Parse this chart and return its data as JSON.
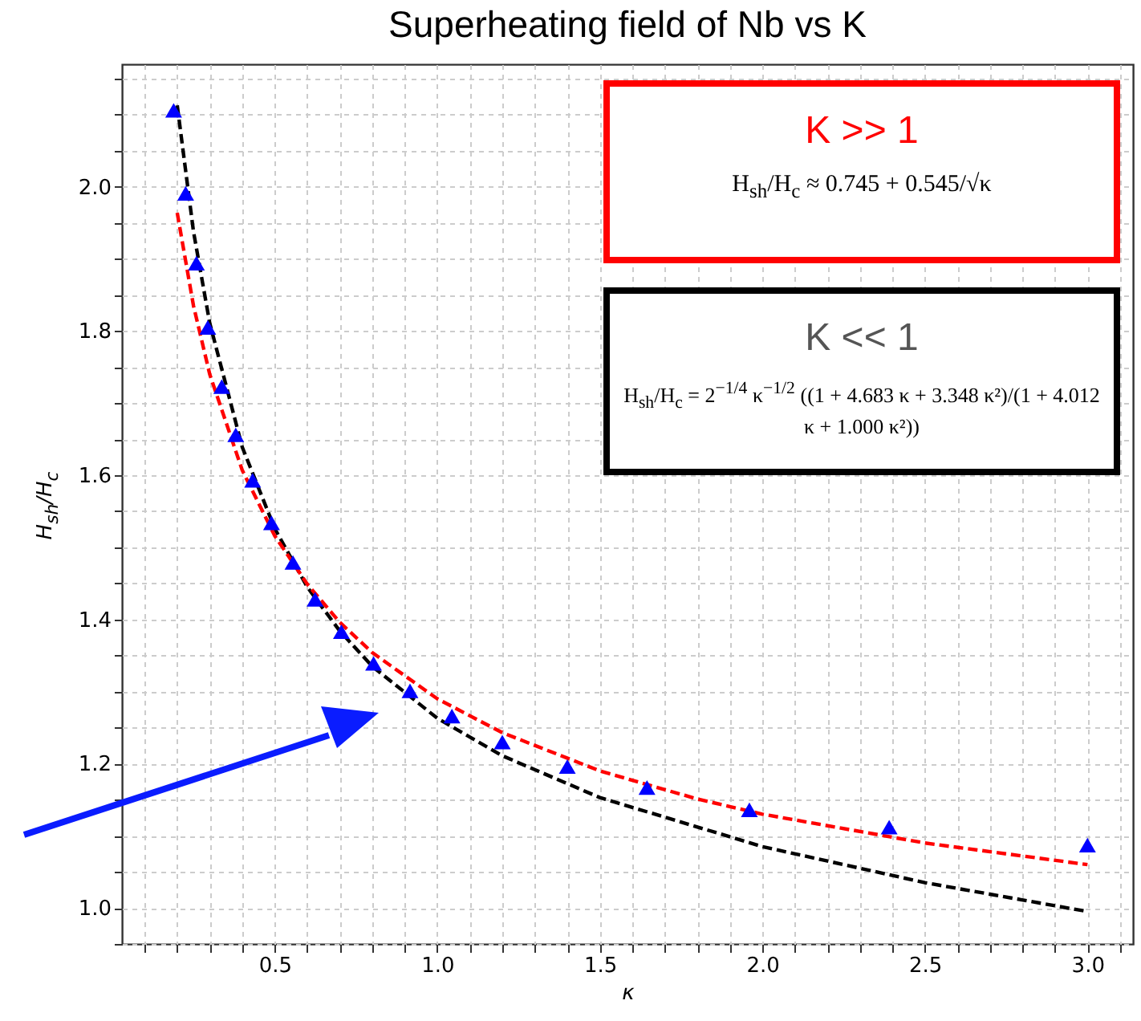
{
  "chart_data": {
    "type": "scatter",
    "title": "Superheating field of Nb vs K",
    "xlabel": "κ",
    "ylabel": "H$_{sh}$/H$_{c}$",
    "xlim": [
      0.03,
      3.14
    ],
    "ylim": [
      0.95,
      2.17
    ],
    "xticks": [
      {
        "value": 0.1,
        "label": null
      },
      {
        "value": 0.2,
        "label": null
      },
      {
        "value": 0.3,
        "label": null
      },
      {
        "value": 0.4,
        "label": null
      },
      {
        "value": 0.5,
        "label": "0.5"
      },
      {
        "value": 0.6,
        "label": null
      },
      {
        "value": 0.7,
        "label": null
      },
      {
        "value": 0.8,
        "label": null
      },
      {
        "value": 0.9,
        "label": null
      },
      {
        "value": 1.0,
        "label": "1.0"
      },
      {
        "value": 1.1,
        "label": null
      },
      {
        "value": 1.2,
        "label": null
      },
      {
        "value": 1.3,
        "label": null
      },
      {
        "value": 1.4,
        "label": null
      },
      {
        "value": 1.5,
        "label": "1.5"
      },
      {
        "value": 1.6,
        "label": null
      },
      {
        "value": 1.7,
        "label": null
      },
      {
        "value": 1.8,
        "label": null
      },
      {
        "value": 1.9,
        "label": null
      },
      {
        "value": 2.0,
        "label": "2.0"
      },
      {
        "value": 2.1,
        "label": null
      },
      {
        "value": 2.2,
        "label": null
      },
      {
        "value": 2.3,
        "label": null
      },
      {
        "value": 2.4,
        "label": null
      },
      {
        "value": 2.5,
        "label": "2.5"
      },
      {
        "value": 2.6,
        "label": null
      },
      {
        "value": 2.7,
        "label": null
      },
      {
        "value": 2.8,
        "label": null
      },
      {
        "value": 2.9,
        "label": null
      },
      {
        "value": 3.0,
        "label": "3.0"
      },
      {
        "value": 3.1,
        "label": null
      }
    ],
    "yticks": [
      {
        "value": 0.95,
        "label": null
      },
      {
        "value": 1.0,
        "label": "1.0"
      },
      {
        "value": 1.05,
        "label": null
      },
      {
        "value": 1.1,
        "label": null
      },
      {
        "value": 1.15,
        "label": null
      },
      {
        "value": 1.2,
        "label": "1.2"
      },
      {
        "value": 1.25,
        "label": null
      },
      {
        "value": 1.3,
        "label": null
      },
      {
        "value": 1.35,
        "label": null
      },
      {
        "value": 1.4,
        "label": "1.4"
      },
      {
        "value": 1.45,
        "label": null
      },
      {
        "value": 1.5,
        "label": null
      },
      {
        "value": 1.55,
        "label": null
      },
      {
        "value": 1.6,
        "label": "1.6"
      },
      {
        "value": 1.65,
        "label": null
      },
      {
        "value": 1.7,
        "label": null
      },
      {
        "value": 1.75,
        "label": null
      },
      {
        "value": 1.8,
        "label": "1.8"
      },
      {
        "value": 1.85,
        "label": null
      },
      {
        "value": 1.9,
        "label": null
      },
      {
        "value": 1.95,
        "label": null
      },
      {
        "value": 2.0,
        "label": "2.0"
      },
      {
        "value": 2.05,
        "label": null
      },
      {
        "value": 2.1,
        "label": null
      },
      {
        "value": 2.15,
        "label": null
      }
    ],
    "grid": true,
    "line_style": "dashed",
    "series": [
      {
        "type": "line",
        "color": "#000000",
        "x": [
          0.2,
          0.25,
          0.3,
          0.4,
          0.5,
          0.6,
          0.7,
          0.8,
          1.0,
          1.2,
          1.5,
          2.0,
          2.5,
          3.0
        ],
        "values": [
          2.113,
          1.938,
          1.811,
          1.639,
          1.526,
          1.445,
          1.384,
          1.335,
          1.263,
          1.211,
          1.153,
          1.085,
          1.035,
          0.995
        ]
      },
      {
        "type": "line",
        "color": "#ff0000",
        "x": [
          0.2,
          0.25,
          0.3,
          0.4,
          0.5,
          0.6,
          0.7,
          0.8,
          1.0,
          1.2,
          1.5,
          1.8,
          2.0,
          2.5,
          3.0
        ],
        "values": [
          1.964,
          1.835,
          1.74,
          1.607,
          1.516,
          1.449,
          1.396,
          1.354,
          1.29,
          1.243,
          1.19,
          1.151,
          1.13,
          1.09,
          1.06
        ]
      },
      {
        "type": "scatter",
        "marker": "triangle",
        "color": "#0000ff",
        "x": [
          0.189,
          0.226,
          0.259,
          0.294,
          0.337,
          0.38,
          0.432,
          0.49,
          0.556,
          0.624,
          0.705,
          0.804,
          0.916,
          1.045,
          1.2,
          1.4,
          1.645,
          1.96,
          2.39,
          3.0
        ],
        "values": [
          2.106,
          1.991,
          1.894,
          1.805,
          1.723,
          1.656,
          1.593,
          1.534,
          1.479,
          1.428,
          1.383,
          1.339,
          1.301,
          1.266,
          1.23,
          1.196,
          1.167,
          1.136,
          1.112,
          1.087
        ]
      }
    ],
    "annotations": [
      "K >> 1",
      "H$_{sh}$/H$_{c}$ ≈ 0.745 + 0.545/√κ",
      "K << 1",
      "H$_{sh}$/H$_{c}$ = 2$^{−1/4}$ κ$^{−1/2}$ ((1 + 4.683 κ + 3.348 κ²)/(1 + 4.012 κ + 1.000 κ²))"
    ]
  }
}
